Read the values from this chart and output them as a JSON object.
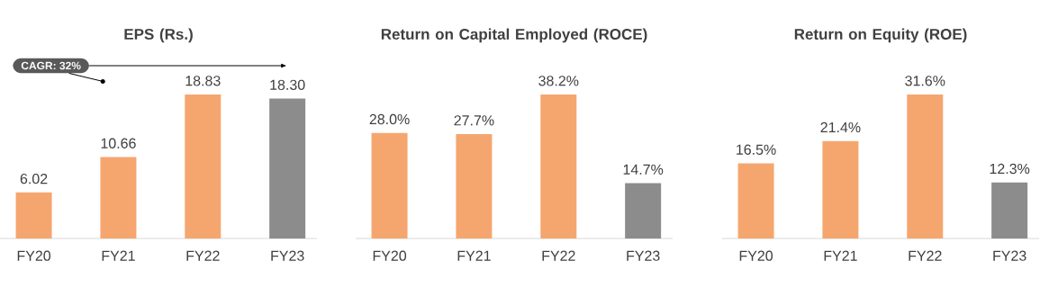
{
  "chart_data": [
    {
      "type": "bar",
      "title": "EPS (Rs.)",
      "categories": [
        "FY20",
        "FY21",
        "FY22",
        "FY23"
      ],
      "values": [
        6.02,
        10.66,
        18.83,
        18.3
      ],
      "value_labels": [
        "6.02",
        "10.66",
        "18.83",
        "18.30"
      ],
      "colors": [
        "#f5a66f",
        "#f5a66f",
        "#f5a66f",
        "#8c8c8c"
      ],
      "tick_labels": "x",
      "annotations": [
        "CAGR: 32%"
      ]
    },
    {
      "type": "bar",
      "title": "Return on Capital Employed (ROCE)",
      "categories": [
        "FY20",
        "FY21",
        "FY22",
        "FY23"
      ],
      "values": [
        28.0,
        27.7,
        38.2,
        14.7
      ],
      "value_labels": [
        "28.0%",
        "27.7%",
        "38.2%",
        "14.7%"
      ],
      "colors": [
        "#f5a66f",
        "#f5a66f",
        "#f5a66f",
        "#8c8c8c"
      ],
      "tick_labels": "x"
    },
    {
      "type": "bar",
      "title": "Return on Equity (ROE)",
      "categories": [
        "FY20",
        "FY21",
        "FY22",
        "FY23"
      ],
      "values": [
        16.5,
        21.4,
        31.6,
        12.3
      ],
      "value_labels": [
        "16.5%",
        "21.4%",
        "31.6%",
        "12.3%"
      ],
      "colors": [
        "#f5a66f",
        "#f5a66f",
        "#f5a66f",
        "#8c8c8c"
      ],
      "tick_labels": "x"
    }
  ]
}
